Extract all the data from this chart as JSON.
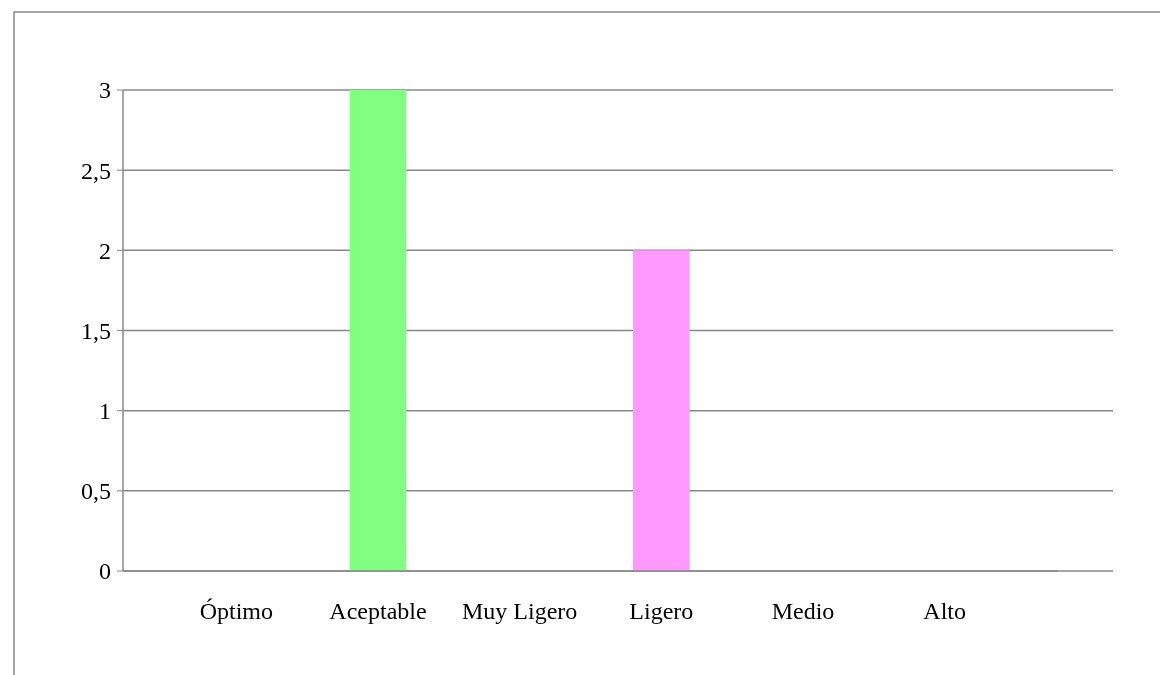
{
  "chart_data": {
    "type": "bar",
    "categories": [
      "Óptimo",
      "Aceptable",
      "Muy Ligero",
      "Ligero",
      "Medio",
      "Alto"
    ],
    "values": [
      0,
      3,
      0,
      2,
      0,
      0
    ],
    "colors": [
      "#7fbf7f",
      "#80ff80",
      "#c8c060",
      "#ff99ff",
      "#c05858",
      "#cc2020"
    ],
    "ylim": [
      0,
      3
    ],
    "yticks": [
      0,
      {
        "value": 0.5,
        "label": "0,5"
      },
      1,
      {
        "value": 1.5,
        "label": "1,5"
      },
      2,
      {
        "value": 2.5,
        "label": "2,5"
      },
      3
    ],
    "grid": "y"
  }
}
